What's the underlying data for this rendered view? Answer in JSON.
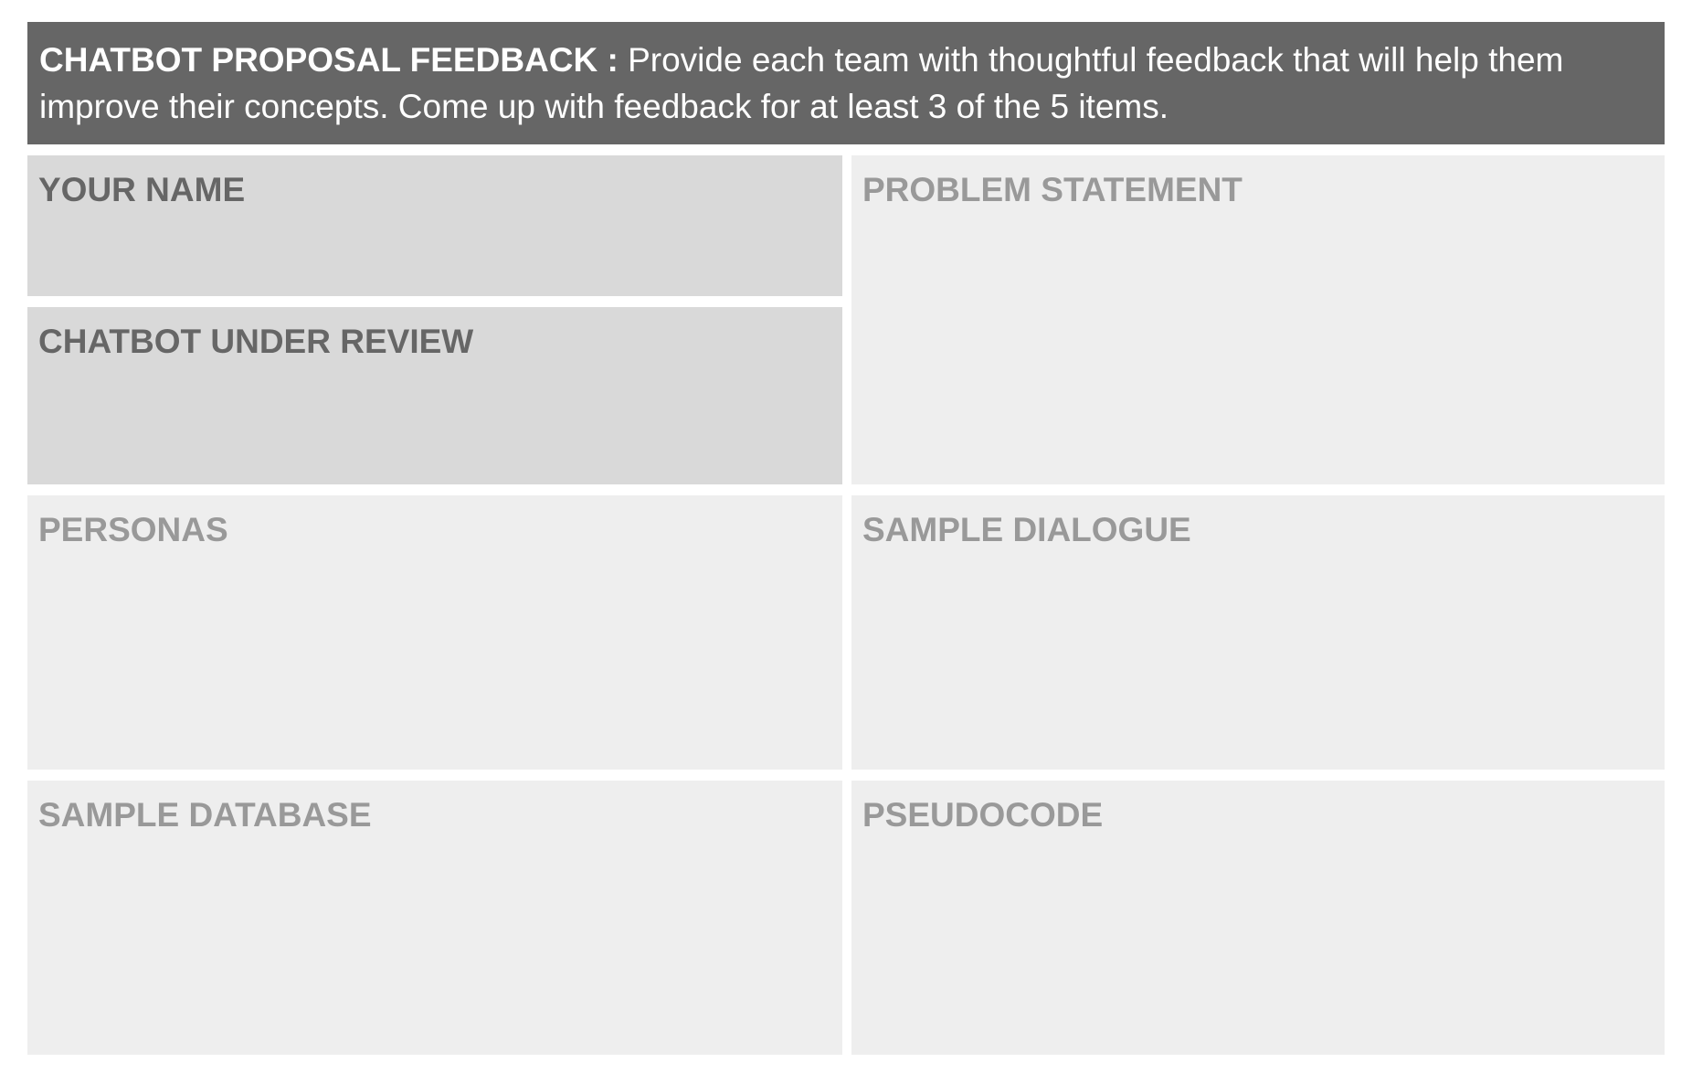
{
  "header": {
    "title": "CHATBOT PROPOSAL FEEDBACK :",
    "instructions": "Provide each team with thoughtful feedback that will help them improve their concepts. Come up with feedback for at least 3 of the 5 items."
  },
  "fields": {
    "your_name": "YOUR NAME",
    "chatbot_under_review": "CHATBOT UNDER REVIEW",
    "problem_statement": "PROBLEM STATEMENT",
    "personas": "PERSONAS",
    "sample_dialogue": "SAMPLE DIALOGUE",
    "sample_database": "SAMPLE DATABASE",
    "pseudocode": "PSEUDOCODE"
  },
  "colors": {
    "header_bg": "#666666",
    "dark_box_bg": "#d9d9d9",
    "light_box_bg": "#eeeeee",
    "dark_label": "#666666",
    "light_label": "#999999"
  }
}
